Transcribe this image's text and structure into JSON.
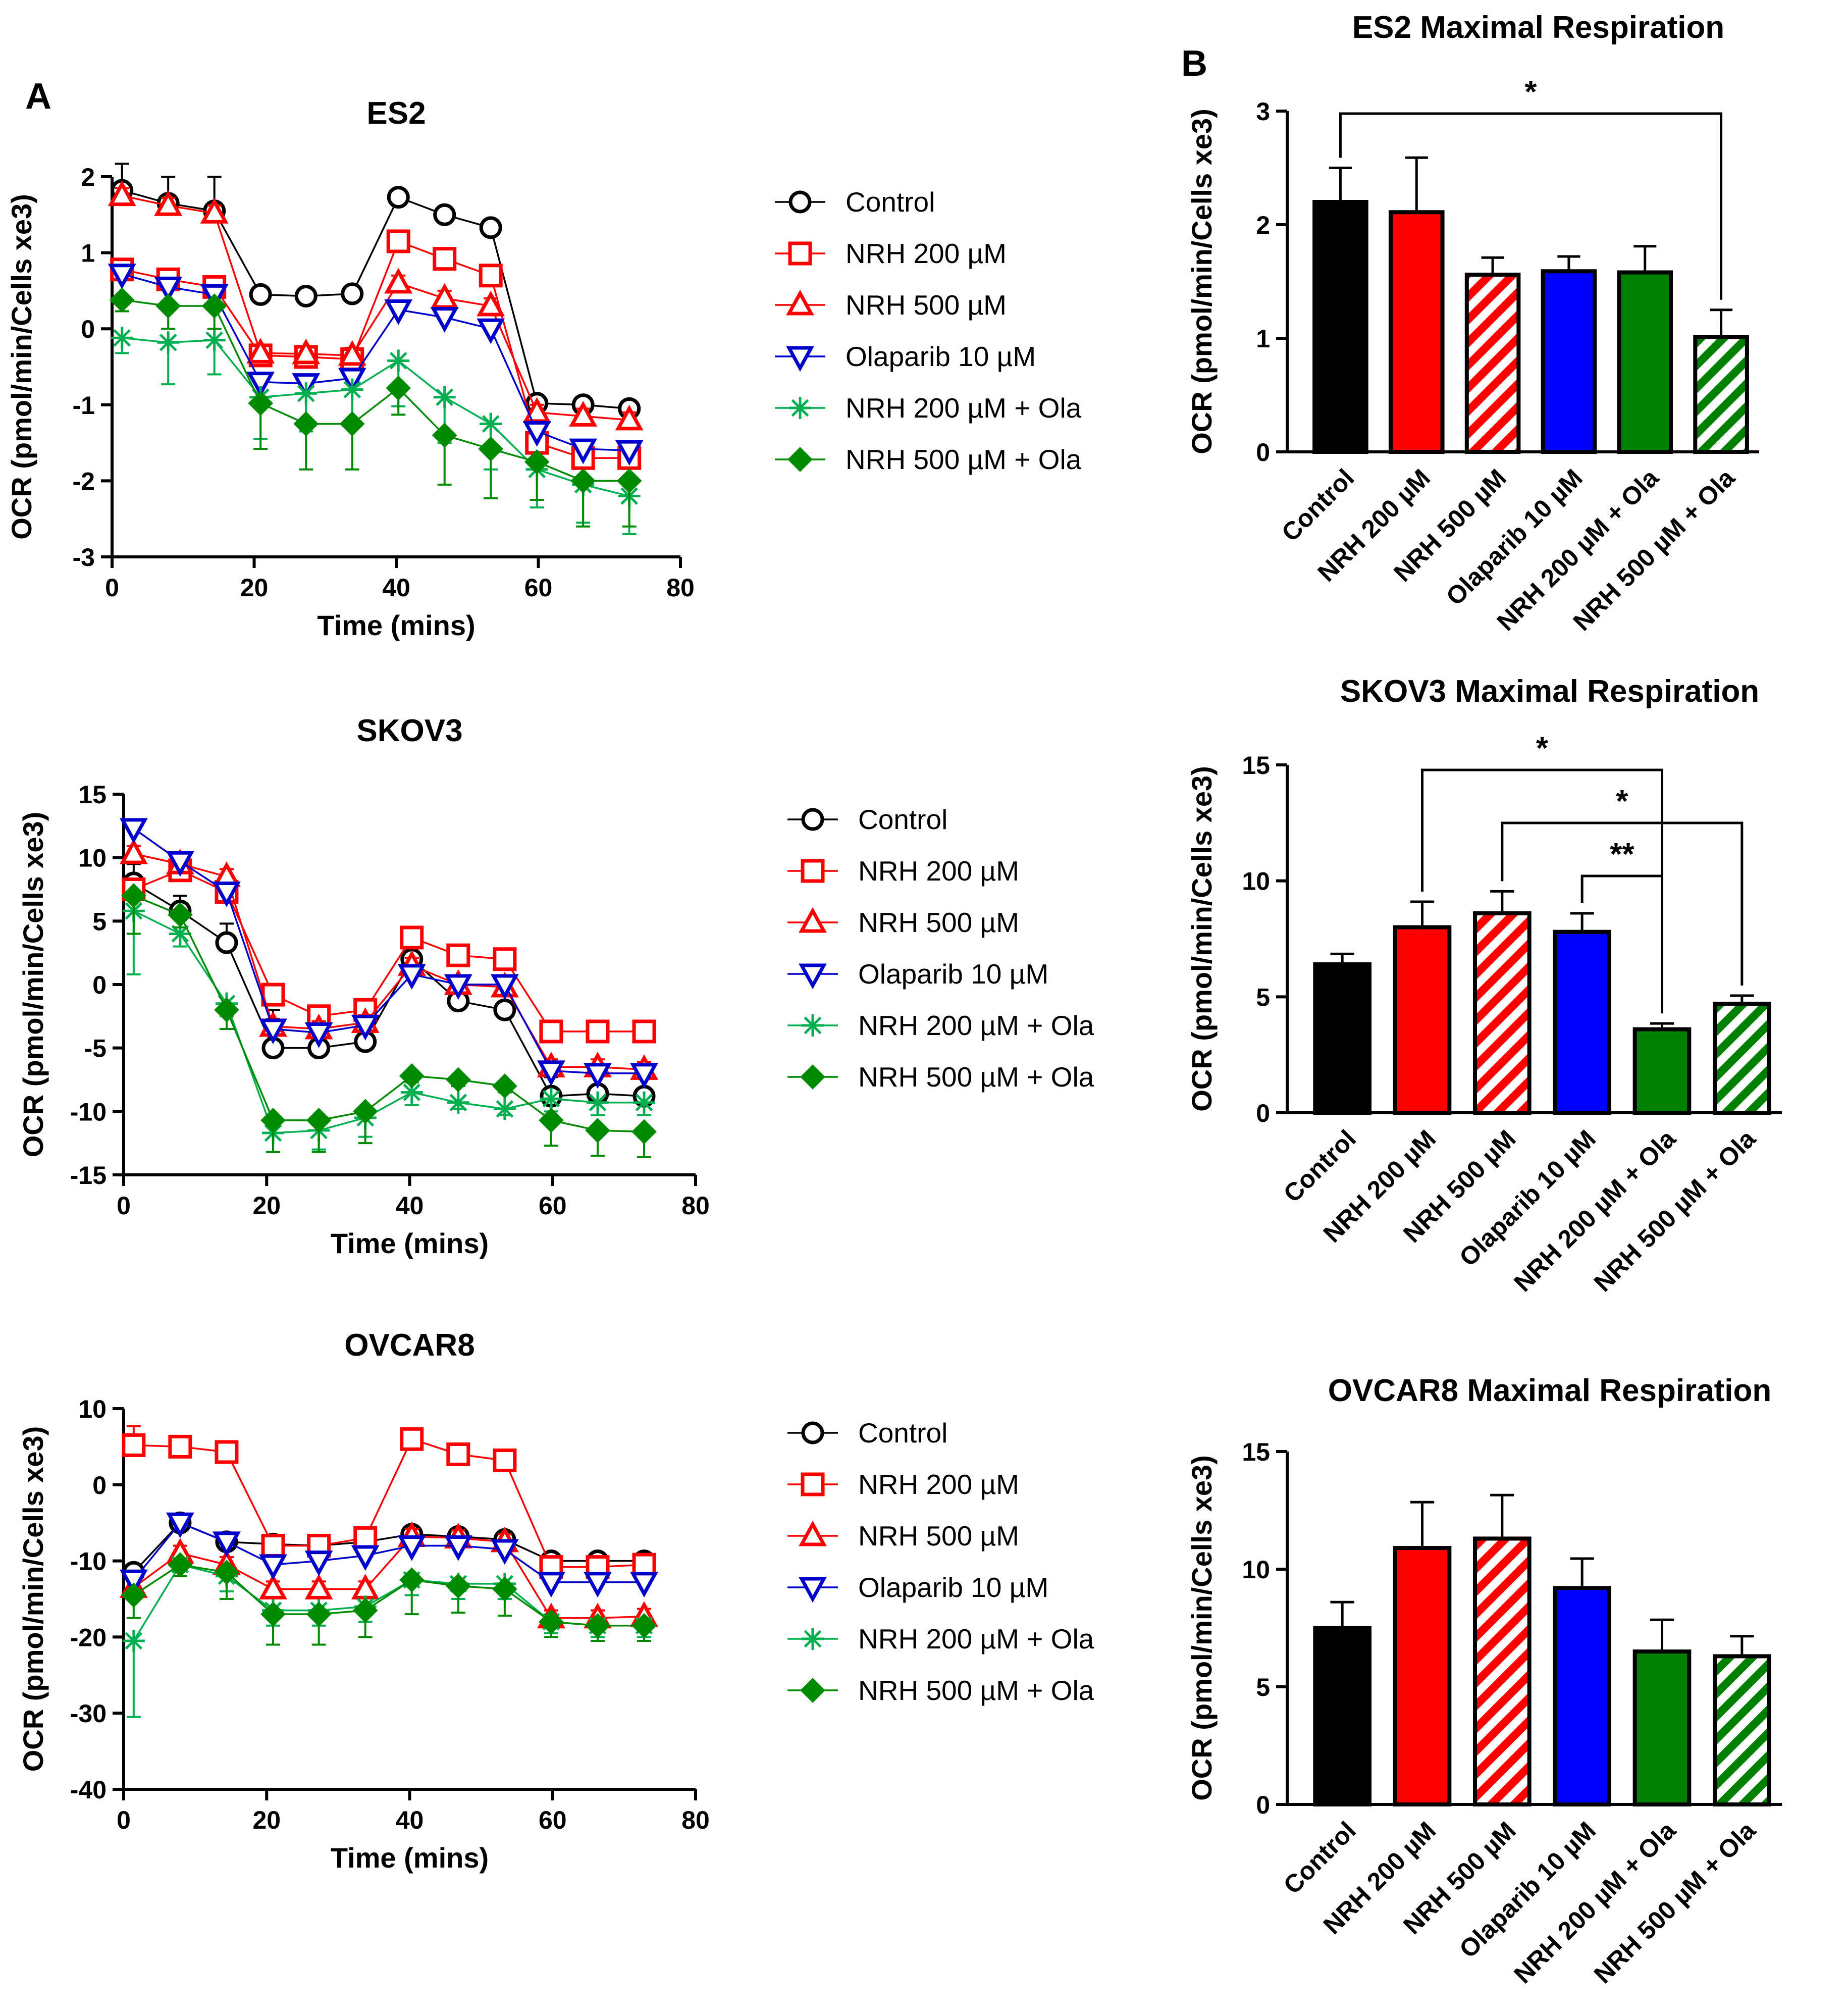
{
  "panel_labels": [
    "A",
    "B"
  ],
  "chart_data": [
    {
      "id": "line-es2",
      "type": "line",
      "title": "ES2",
      "xlabel": "Time (mins)",
      "ylabel": "OCR (pmol/min/Cells xe3)",
      "xlim": [
        0,
        80
      ],
      "ylim": [
        -3,
        2
      ],
      "xticks": [
        0,
        20,
        40,
        60,
        80
      ],
      "yticks": [
        -3,
        -2,
        -1,
        0,
        1,
        2
      ],
      "x": [
        1.4,
        7.9,
        14.4,
        20.9,
        27.3,
        33.8,
        40.3,
        46.8,
        53.3,
        59.8,
        66.3,
        72.8
      ],
      "series": [
        {
          "name": "Control",
          "color": "#000000",
          "marker": "circle",
          "values": [
            1.82,
            1.65,
            1.55,
            0.45,
            0.43,
            0.46,
            1.73,
            1.5,
            1.33,
            -0.98,
            -1.0,
            -1.05
          ],
          "errors": [
            0.35,
            0.35,
            0.45,
            0.1,
            0.1,
            0.1,
            0.06,
            0.06,
            0.06,
            0.08,
            0.08,
            0.08
          ]
        },
        {
          "name": "NRH 200 µM",
          "color": "#ff0000",
          "marker": "square",
          "values": [
            0.78,
            0.65,
            0.55,
            -0.35,
            -0.37,
            -0.4,
            1.15,
            0.92,
            0.7,
            -1.5,
            -1.7,
            -1.7
          ],
          "errors": [
            0.1,
            0.1,
            0.1,
            0.1,
            0.1,
            0.1,
            0.12,
            0.12,
            0.12,
            0.15,
            0.15,
            0.15
          ]
        },
        {
          "name": "NRH 500 µM",
          "color": "#ff0000",
          "marker": "triangle-up",
          "values": [
            1.75,
            1.62,
            1.52,
            -0.32,
            -0.33,
            -0.35,
            0.6,
            0.4,
            0.3,
            -1.1,
            -1.15,
            -1.2
          ],
          "errors": [
            0.1,
            0.1,
            0.1,
            0.1,
            0.1,
            0.1,
            0.1,
            0.1,
            0.1,
            0.1,
            0.1,
            0.1
          ]
        },
        {
          "name": "Olaparib 10 µM",
          "color": "#0000cc",
          "marker": "triangle-down",
          "values": [
            0.72,
            0.55,
            0.45,
            -0.7,
            -0.72,
            -0.65,
            0.25,
            0.15,
            0.0,
            -1.35,
            -1.58,
            -1.6
          ],
          "errors": [
            0.1,
            0.1,
            0.1,
            0.1,
            0.1,
            0.1,
            0.1,
            0.1,
            0.1,
            0.1,
            0.1,
            0.1
          ]
        },
        {
          "name": "NRH 200 µM + Ola",
          "color": "#00b050",
          "marker": "star",
          "values": [
            -0.12,
            -0.18,
            -0.15,
            -0.9,
            -0.85,
            -0.8,
            -0.42,
            -0.9,
            -1.25,
            -1.85,
            -2.05,
            -2.2
          ],
          "errors": [
            0.2,
            0.55,
            0.45,
            0.55,
            0.5,
            0.5,
            0.6,
            0.6,
            0.6,
            0.5,
            0.5,
            0.5
          ]
        },
        {
          "name": "NRH 500 µM + Ola",
          "color": "#008a00",
          "marker": "diamond",
          "values": [
            0.38,
            0.3,
            0.3,
            -0.98,
            -1.25,
            -1.25,
            -0.78,
            -1.4,
            -1.58,
            -1.75,
            -2.0,
            -2.0
          ],
          "errors": [
            0.15,
            0.3,
            0.3,
            0.6,
            0.6,
            0.6,
            0.35,
            0.65,
            0.65,
            0.5,
            0.6,
            0.6
          ]
        }
      ]
    },
    {
      "id": "line-skov3",
      "type": "line",
      "title": "SKOV3",
      "xlabel": "Time (mins)",
      "ylabel": "OCR (pmol/min/Cells xe3)",
      "xlim": [
        0,
        80
      ],
      "ylim": [
        -15,
        15
      ],
      "xticks": [
        0,
        20,
        40,
        60,
        80
      ],
      "yticks": [
        -15,
        -10,
        -5,
        0,
        5,
        10,
        15
      ],
      "x": [
        1.4,
        7.9,
        14.4,
        20.9,
        27.3,
        33.8,
        40.3,
        46.8,
        53.3,
        59.8,
        66.3,
        72.8
      ],
      "series": [
        {
          "name": "Control",
          "color": "#000000",
          "marker": "circle",
          "values": [
            8.0,
            5.8,
            3.3,
            -5.0,
            -5.0,
            -4.5,
            2.0,
            -1.3,
            -2.0,
            -8.8,
            -8.6,
            -8.8
          ],
          "errors": [
            1.5,
            1.2,
            1.5,
            3.0,
            3.0,
            3.0,
            1.5,
            2.0,
            2.0,
            1.5,
            1.5,
            1.5
          ]
        },
        {
          "name": "NRH 200 µM",
          "color": "#ff0000",
          "marker": "square",
          "values": [
            7.5,
            9.0,
            7.3,
            -0.8,
            -2.5,
            -2.0,
            3.7,
            2.3,
            2.0,
            -3.7,
            -3.7,
            -3.7
          ],
          "errors": [
            0.6,
            0.6,
            0.6,
            0.6,
            0.6,
            0.6,
            0.6,
            0.6,
            0.6,
            0.5,
            0.5,
            0.5
          ]
        },
        {
          "name": "NRH 500 µM",
          "color": "#ff0000",
          "marker": "triangle-up",
          "values": [
            10.3,
            9.5,
            8.5,
            -3.3,
            -3.5,
            -3.0,
            1.5,
            0.0,
            -0.2,
            -6.5,
            -6.5,
            -6.7
          ],
          "errors": [
            0.6,
            0.6,
            0.6,
            0.6,
            0.6,
            0.6,
            0.6,
            0.6,
            0.6,
            0.6,
            0.6,
            0.6
          ]
        },
        {
          "name": "Olaparib 10 µM",
          "color": "#0000cc",
          "marker": "triangle-down",
          "values": [
            12.3,
            9.7,
            7.3,
            -3.5,
            -3.8,
            -3.2,
            0.8,
            0.0,
            0.0,
            -6.8,
            -7.0,
            -7.0
          ],
          "errors": [
            0.6,
            0.6,
            0.6,
            0.6,
            0.6,
            0.6,
            0.6,
            0.6,
            0.6,
            0.6,
            0.6,
            0.6
          ]
        },
        {
          "name": "NRH 200 µM + Ola",
          "color": "#00b050",
          "marker": "star",
          "values": [
            5.8,
            4.0,
            -1.5,
            -11.7,
            -11.5,
            -10.5,
            -8.5,
            -9.3,
            -9.8,
            -9.0,
            -9.3,
            -9.3
          ],
          "errors": [
            5.0,
            1.0,
            1.0,
            1.5,
            1.5,
            1.5,
            1.0,
            0.5,
            0.5,
            1.0,
            1.0,
            1.0
          ]
        },
        {
          "name": "NRH 500 µM + Ola",
          "color": "#008a00",
          "marker": "diamond",
          "values": [
            7.0,
            5.5,
            -2.0,
            -10.7,
            -10.7,
            -10.0,
            -7.2,
            -7.5,
            -8.0,
            -10.7,
            -11.5,
            -11.6
          ],
          "errors": [
            3.0,
            1.0,
            1.5,
            2.5,
            2.5,
            2.5,
            0.5,
            0.5,
            0.5,
            2.0,
            2.0,
            2.0
          ]
        }
      ]
    },
    {
      "id": "line-ovcar8",
      "type": "line",
      "title": "OVCAR8",
      "xlabel": "Time (mins)",
      "ylabel": "OCR (pmol/min/Cells xe3)",
      "xlim": [
        0,
        80
      ],
      "ylim": [
        -40,
        10
      ],
      "xticks": [
        0,
        20,
        40,
        60,
        80
      ],
      "yticks": [
        -40,
        -30,
        -20,
        -10,
        0,
        10
      ],
      "x": [
        1.4,
        7.9,
        14.4,
        20.9,
        27.3,
        33.8,
        40.3,
        46.8,
        53.3,
        59.8,
        66.3,
        72.8
      ],
      "series": [
        {
          "name": "Control",
          "color": "#000000",
          "marker": "circle",
          "values": [
            -11.5,
            -5.0,
            -7.5,
            -7.8,
            -8.0,
            -7.5,
            -6.5,
            -6.8,
            -7.2,
            -10.0,
            -10.0,
            -10.0
          ],
          "errors": [
            1.0,
            1.0,
            1.0,
            1.0,
            1.0,
            1.0,
            1.0,
            1.0,
            1.0,
            1.0,
            1.0,
            1.0
          ]
        },
        {
          "name": "NRH 200 µM",
          "color": "#ff0000",
          "marker": "square",
          "values": [
            5.2,
            5.0,
            4.3,
            -8.0,
            -8.0,
            -7.0,
            6.0,
            4.0,
            3.2,
            -10.8,
            -10.8,
            -10.5
          ],
          "errors": [
            2.5,
            1.0,
            1.0,
            1.0,
            1.0,
            1.0,
            1.0,
            1.0,
            1.0,
            1.0,
            1.0,
            1.0
          ]
        },
        {
          "name": "NRH 500 µM",
          "color": "#ff0000",
          "marker": "triangle-up",
          "values": [
            -13.5,
            -9.0,
            -10.5,
            -13.7,
            -13.7,
            -13.7,
            -6.8,
            -7.0,
            -7.5,
            -17.5,
            -17.5,
            -17.3
          ],
          "errors": [
            1.0,
            1.0,
            1.0,
            1.0,
            1.0,
            1.0,
            1.0,
            1.0,
            1.0,
            1.0,
            1.0,
            1.0
          ]
        },
        {
          "name": "Olaparib 10 µM",
          "color": "#0000cc",
          "marker": "triangle-down",
          "values": [
            -12.5,
            -5.0,
            -7.5,
            -10.5,
            -10.0,
            -9.3,
            -8.0,
            -8.0,
            -8.5,
            -12.8,
            -12.8,
            -12.8
          ],
          "errors": [
            1.0,
            1.0,
            1.0,
            1.0,
            1.0,
            1.0,
            1.0,
            1.0,
            1.0,
            1.0,
            1.0,
            1.0
          ]
        },
        {
          "name": "NRH 200 µM + Ola",
          "color": "#00b050",
          "marker": "star",
          "values": [
            -20.5,
            -10.5,
            -12.0,
            -16.5,
            -16.5,
            -16.0,
            -12.5,
            -13.0,
            -13.0,
            -18.0,
            -18.5,
            -18.5
          ],
          "errors": [
            10.0,
            1.5,
            2.0,
            2.0,
            2.0,
            2.0,
            2.0,
            2.0,
            2.0,
            1.5,
            1.5,
            1.5
          ]
        },
        {
          "name": "NRH 500 µM + Ola",
          "color": "#008a00",
          "marker": "diamond",
          "values": [
            -14.5,
            -10.5,
            -11.5,
            -17.0,
            -17.0,
            -16.5,
            -12.5,
            -13.3,
            -13.7,
            -18.0,
            -18.5,
            -18.5
          ],
          "errors": [
            3.0,
            1.5,
            3.5,
            4.0,
            4.0,
            3.5,
            4.5,
            3.5,
            3.5,
            2.0,
            2.0,
            2.0
          ]
        }
      ]
    },
    {
      "id": "bar-es2",
      "type": "bar",
      "title": "ES2 Maximal Respiration",
      "xlabel": "",
      "ylabel": "OCR (pmol/min/Cells xe3)",
      "ylim": [
        0,
        3
      ],
      "yticks": [
        0,
        1,
        2,
        3
      ],
      "categories": [
        "Control",
        "NRH 200 µM",
        "NRH 500 µM",
        "Olaparib 10 µM",
        "NRH 200 µM + Ola",
        "NRH 500 µM + Ola"
      ],
      "values": [
        2.2,
        2.11,
        1.56,
        1.59,
        1.58,
        1.01
      ],
      "errors": [
        0.3,
        0.48,
        0.15,
        0.13,
        0.23,
        0.24
      ],
      "colors": [
        "#000000",
        "#ff0000",
        "#ff0000",
        "#0000ff",
        "#008000",
        "#008000"
      ],
      "hatched": [
        false,
        false,
        true,
        false,
        false,
        true
      ],
      "significance": [
        {
          "from": 0,
          "to": 5,
          "label": "*"
        }
      ]
    },
    {
      "id": "bar-skov3",
      "type": "bar",
      "title": "SKOV3 Maximal Respiration",
      "xlabel": "",
      "ylabel": "OCR (pmol/min/Cells xe3)",
      "ylim": [
        0,
        15
      ],
      "yticks": [
        0,
        5,
        10,
        15
      ],
      "categories": [
        "Control",
        "NRH 200 µM",
        "NRH 500 µM",
        "Olaparib 10 µM",
        "NRH 200 µM + Ola",
        "NRH 500 µM + Ola"
      ],
      "values": [
        6.4,
        8.0,
        8.6,
        7.8,
        3.6,
        4.7
      ],
      "errors": [
        0.45,
        1.1,
        0.95,
        0.8,
        0.25,
        0.35
      ],
      "colors": [
        "#000000",
        "#ff0000",
        "#ff0000",
        "#0000ff",
        "#008000",
        "#008000"
      ],
      "hatched": [
        false,
        false,
        true,
        false,
        false,
        true
      ],
      "significance": [
        {
          "from": 1,
          "to": 4,
          "label": "*"
        },
        {
          "from": 2,
          "to": 5,
          "label": "*"
        },
        {
          "from": 3,
          "to": 4,
          "label": "**"
        }
      ]
    },
    {
      "id": "bar-ovcar8",
      "type": "bar",
      "title": "OVCAR8 Maximal Respiration",
      "xlabel": "",
      "ylabel": "OCR (pmol/min/Cells xe3)",
      "ylim": [
        0,
        15
      ],
      "yticks": [
        0,
        5,
        10,
        15
      ],
      "categories": [
        "Control",
        "NRH 200 µM",
        "NRH 500 µM",
        "Olaparib 10 µM",
        "NRH 200 µM + Ola",
        "NRH 500 µM + Ola"
      ],
      "values": [
        7.5,
        10.9,
        11.3,
        9.2,
        6.5,
        6.3
      ],
      "errors": [
        1.1,
        1.95,
        1.85,
        1.25,
        1.35,
        0.85
      ],
      "colors": [
        "#000000",
        "#ff0000",
        "#ff0000",
        "#0000ff",
        "#008000",
        "#008000"
      ],
      "hatched": [
        false,
        false,
        true,
        false,
        false,
        true
      ],
      "significance": []
    }
  ]
}
